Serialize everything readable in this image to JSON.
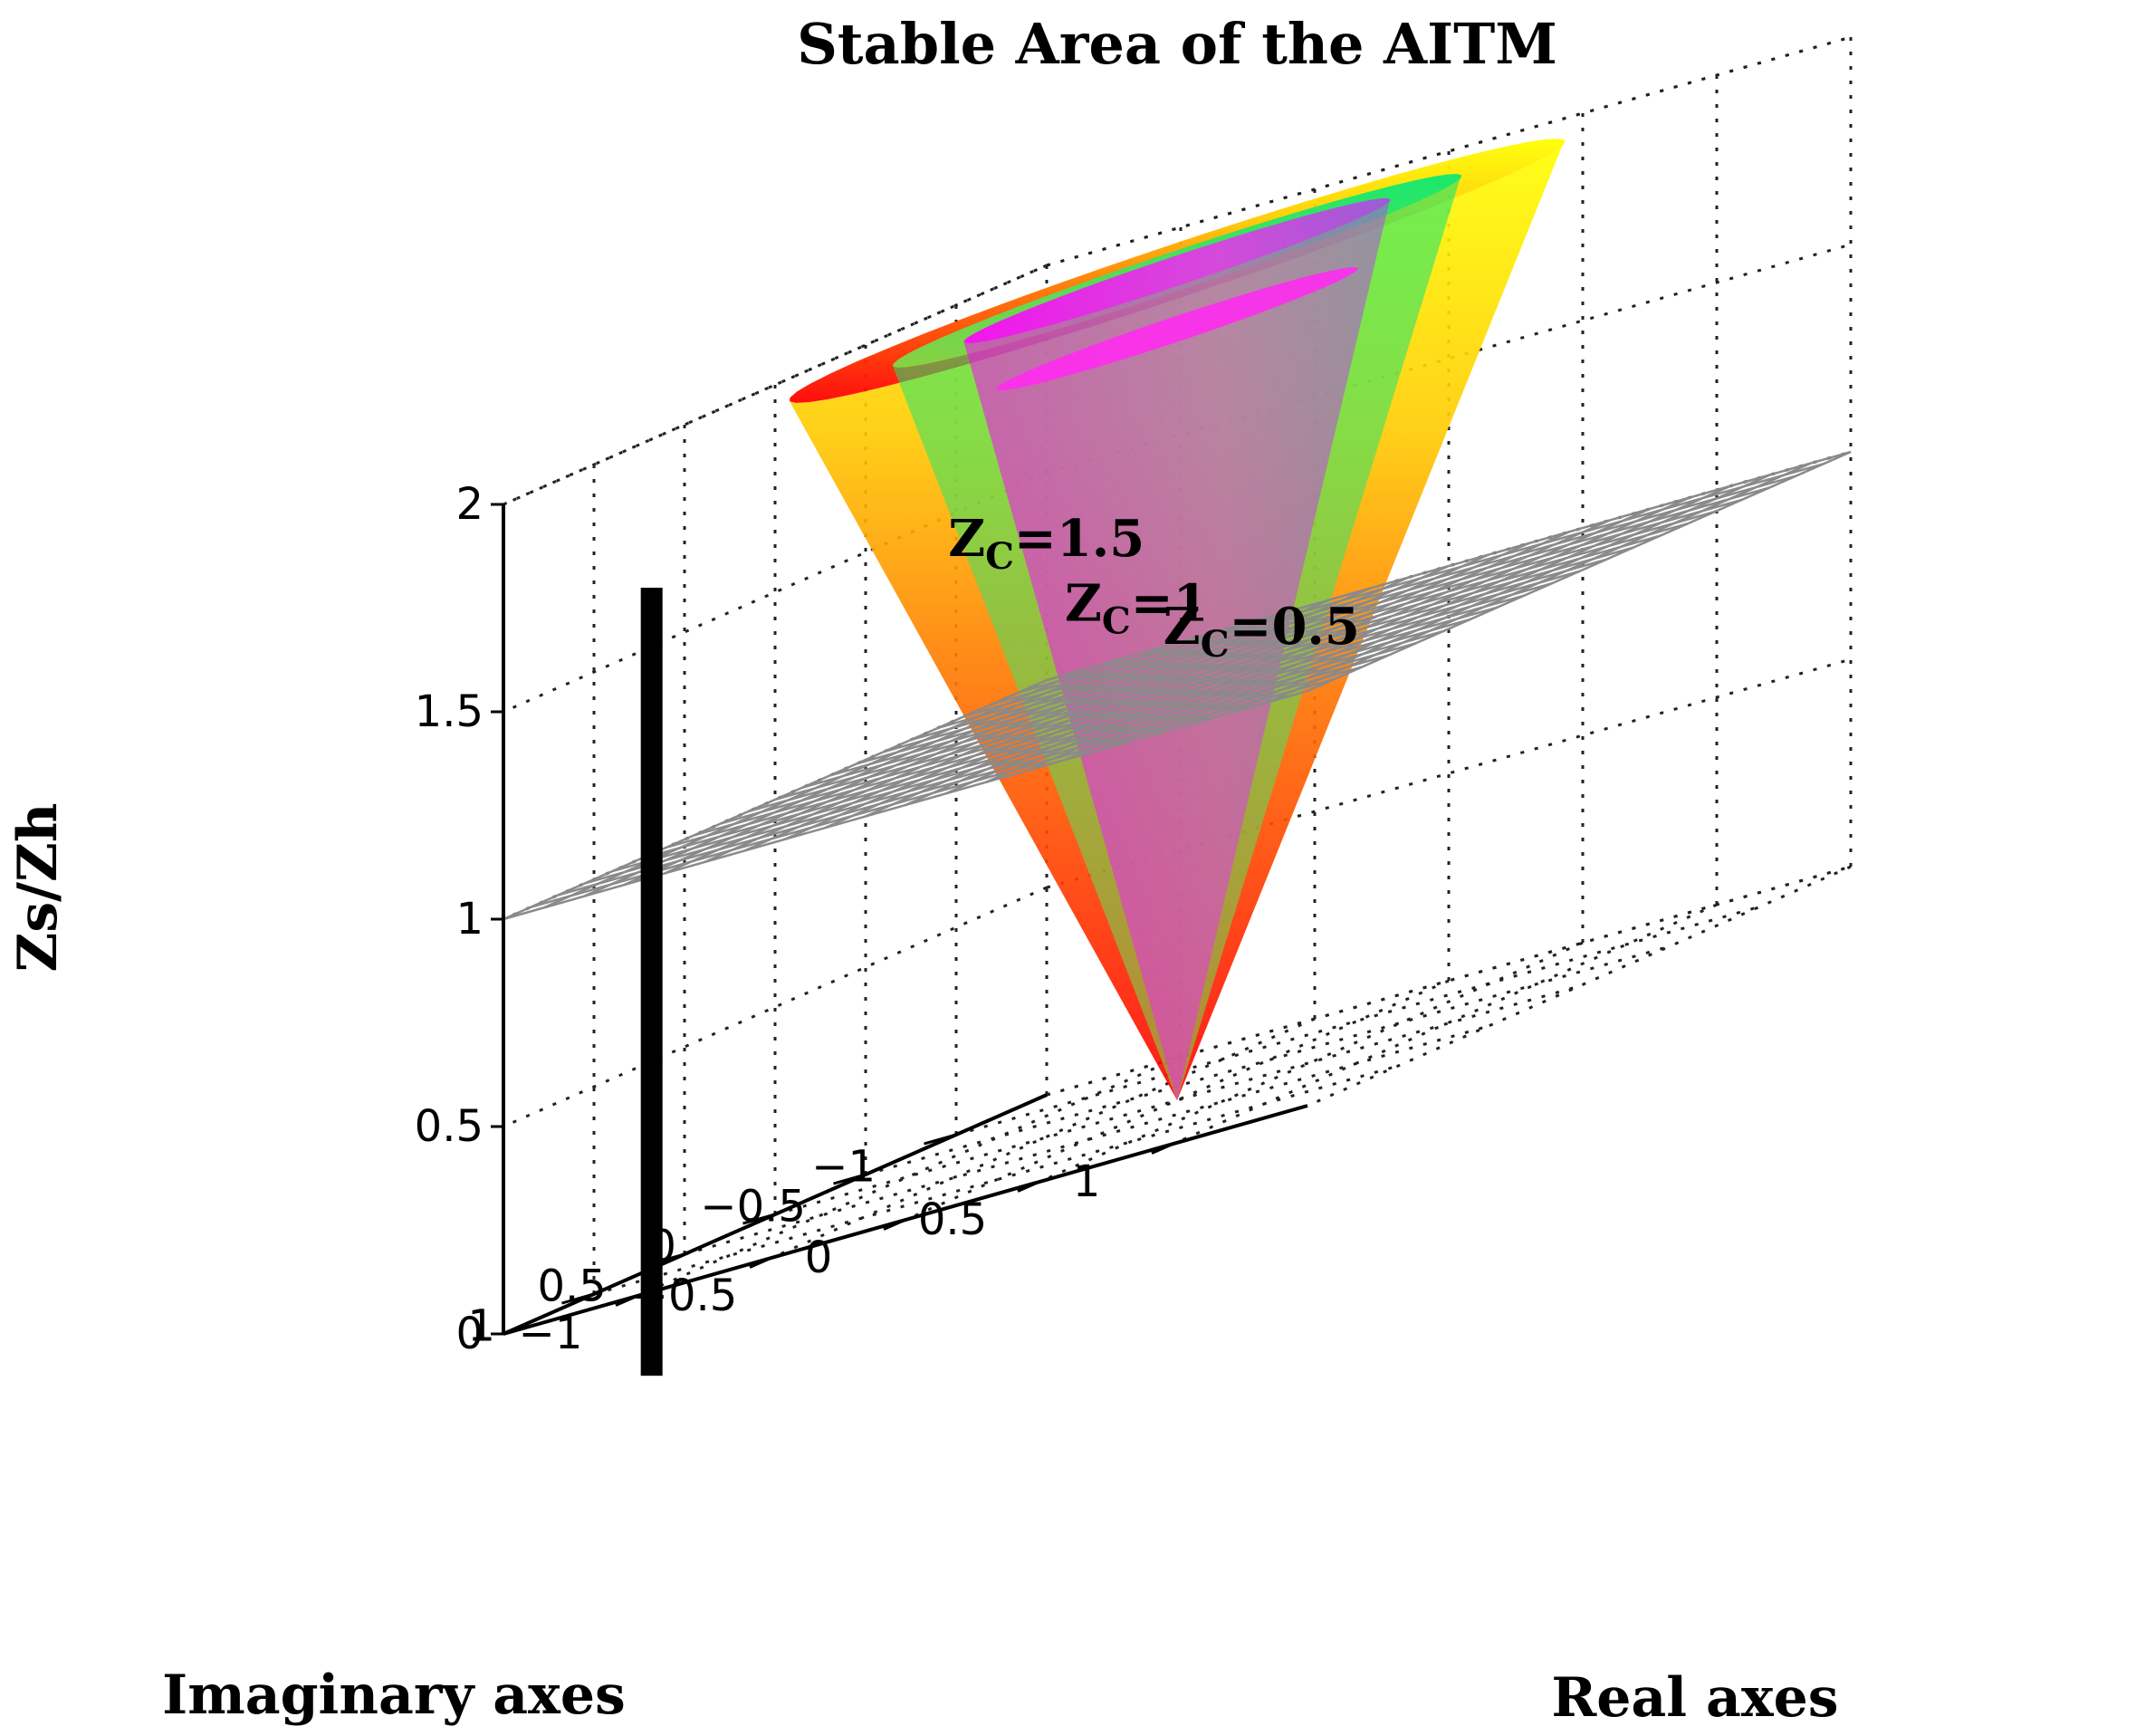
{
  "chart_data": {
    "type": "surface3d",
    "title": "Stable Area of the AITM",
    "xlabel": "Real axes",
    "ylabel": "Imaginary axes",
    "zlabel": "Zs/Zh",
    "xlim": [
      -1.5,
      1.5
    ],
    "ylim": [
      -1.5,
      1.5
    ],
    "zlim": [
      0,
      2
    ],
    "x_ticks": [
      {
        "value": -1,
        "label": "−1"
      },
      {
        "value": -0.5,
        "label": "−0.5"
      },
      {
        "value": 0,
        "label": "0"
      },
      {
        "value": 0.5,
        "label": "0.5"
      },
      {
        "value": 1,
        "label": "1"
      }
    ],
    "y_ticks": [
      {
        "value": -1,
        "label": "−1"
      },
      {
        "value": -0.5,
        "label": "−0.5"
      },
      {
        "value": 0,
        "label": "0"
      },
      {
        "value": 0.5,
        "label": "0.5"
      },
      {
        "value": 1,
        "label": "1"
      }
    ],
    "z_ticks": [
      {
        "value": 0,
        "label": "0"
      },
      {
        "value": 0.5,
        "label": "0.5"
      },
      {
        "value": 1,
        "label": "1"
      },
      {
        "value": 1.5,
        "label": "1.5"
      },
      {
        "value": 2,
        "label": "2"
      }
    ],
    "grid": true,
    "plane_z": 1.0,
    "cones": [
      {
        "zc": 0.5,
        "label_prefix": "Z",
        "label_sub": "C",
        "label_suffix": "=0.5",
        "color": "#ffff00"
      },
      {
        "zc": 1,
        "label_prefix": "Z",
        "label_sub": "C",
        "label_suffix": "=1",
        "color": "#00e676"
      },
      {
        "zc": 1.5,
        "label_prefix": "Z",
        "label_sub": "C",
        "label_suffix": "=1.5",
        "color": "#ff00ff"
      }
    ],
    "cone_bottom_color": "#ff0000",
    "cone_mid_color": "#ff8c00",
    "vertical_bar_color": "#000000"
  }
}
